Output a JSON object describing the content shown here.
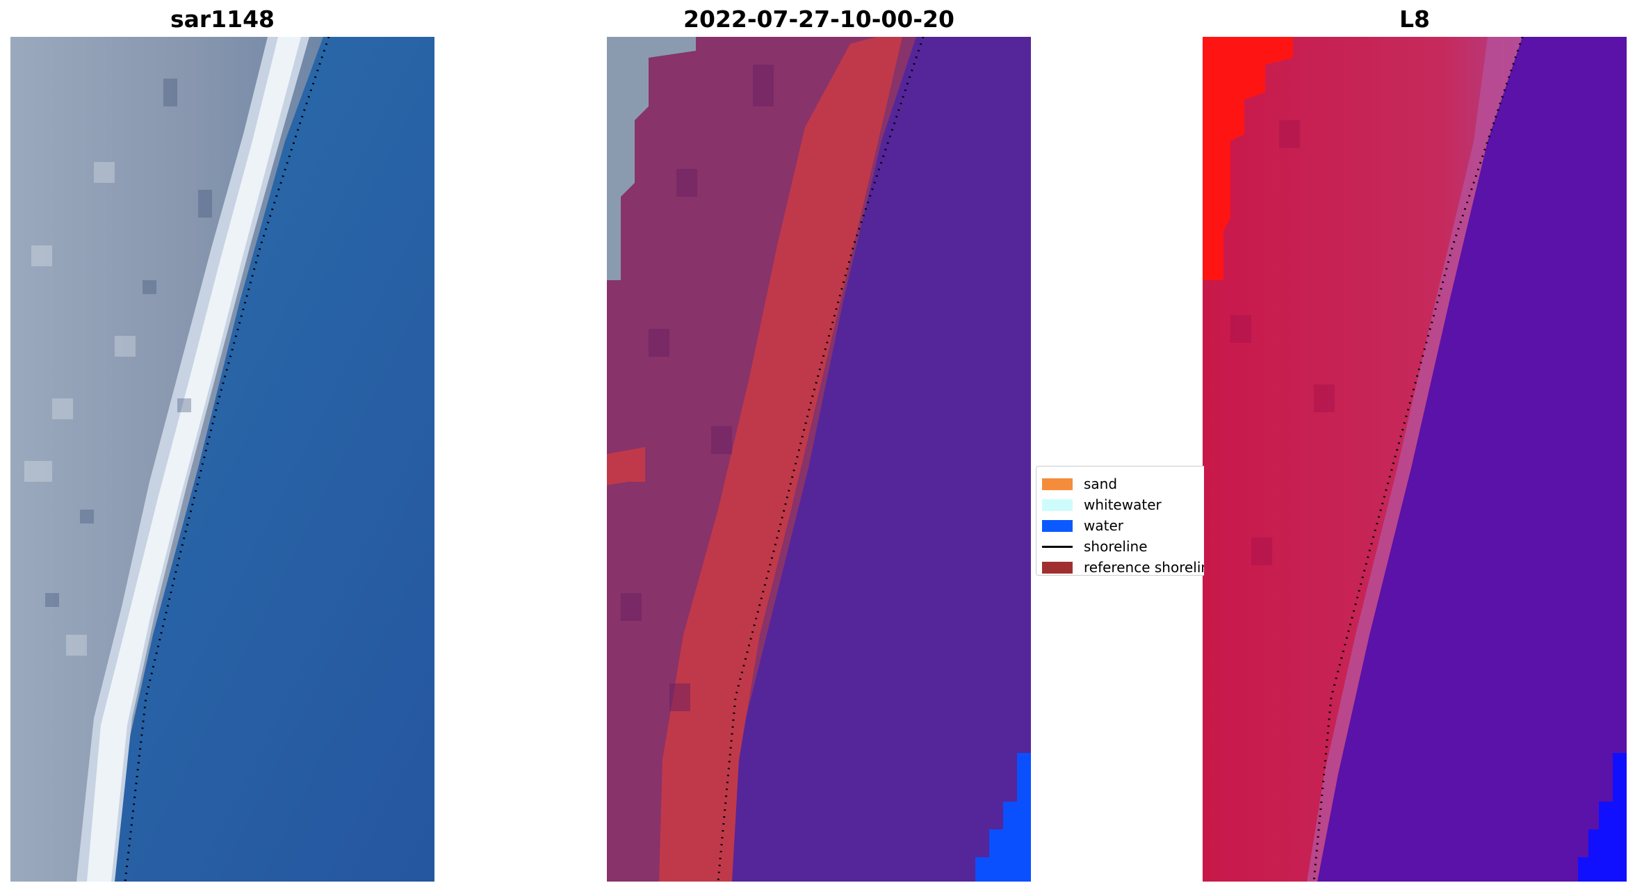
{
  "panels": [
    {
      "title": "sar1148",
      "colors": {
        "land": "#8fa0b8",
        "beach": "#e8eef4",
        "water": "#2a68a8",
        "water_dark": "#2558a0"
      }
    },
    {
      "title": "2022-07-27-10-00-20",
      "colors": {
        "land": "#88336a",
        "sand_band": "#c0394a",
        "water": "#55259a",
        "water_edge": "#0a50ff",
        "top_left": "#8a9bb0"
      }
    },
    {
      "title": "L8",
      "colors": {
        "land": "#c8184a",
        "red_corner": "#ff1414",
        "water": "#5a12a8",
        "water_edge": "#1010ff"
      }
    }
  ],
  "legend": {
    "items": [
      {
        "label": "sand",
        "color": "#f58c3c",
        "kind": "patch"
      },
      {
        "label": "whitewater",
        "color": "#cefcfc",
        "kind": "patch"
      },
      {
        "label": "water",
        "color": "#0a5aff",
        "kind": "patch"
      },
      {
        "label": "shoreline",
        "color": "#000000",
        "kind": "line"
      },
      {
        "label": "reference shoreline",
        "color": "#a03030",
        "kind": "patch"
      }
    ]
  }
}
